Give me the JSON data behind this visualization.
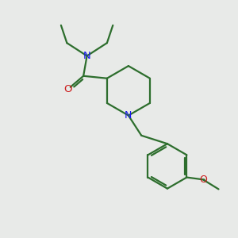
{
  "background_color": "#e8eae8",
  "bond_color": "#2d6e2d",
  "N_color": "#1a1aee",
  "O_color": "#cc1a1a",
  "line_width": 1.6,
  "fig_size": [
    3.0,
    3.0
  ],
  "dpi": 100,
  "xlim": [
    0,
    10
  ],
  "ylim": [
    0,
    10
  ]
}
